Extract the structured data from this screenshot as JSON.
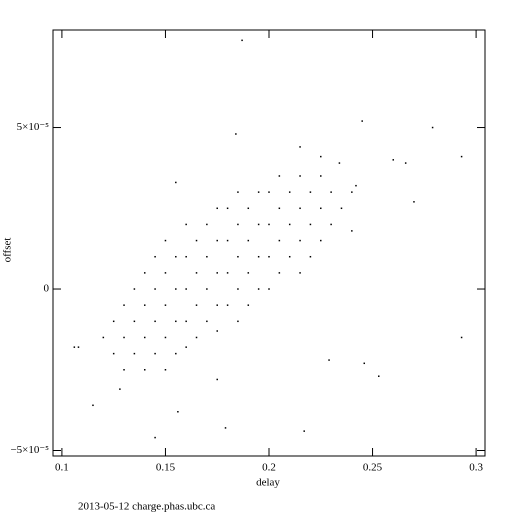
{
  "chart_data": {
    "type": "scatter",
    "x_label": "delay",
    "y_label": "offset",
    "footer": "2013-05-12 charge.phas.ubc.ca",
    "color": "#000000",
    "xlim": [
      0.0957,
      0.3043
    ],
    "ylim": [
      -5.17e-05,
      8.02e-05
    ],
    "xticks": [
      0.1,
      0.15,
      0.2,
      0.25,
      0.3
    ],
    "yticks": [
      {
        "value": -5e-05,
        "label": "−5×10⁻⁵"
      },
      0,
      {
        "value": 5e-05,
        "label": "5×10⁻⁵"
      }
    ],
    "x": [
      0.12,
      0.125,
      0.125,
      0.13,
      0.13,
      0.13,
      0.135,
      0.135,
      0.135,
      0.14,
      0.14,
      0.14,
      0.14,
      0.145,
      0.145,
      0.145,
      0.145,
      0.15,
      0.15,
      0.15,
      0.15,
      0.15,
      0.155,
      0.155,
      0.155,
      0.155,
      0.16,
      0.16,
      0.16,
      0.16,
      0.16,
      0.165,
      0.165,
      0.165,
      0.165,
      0.17,
      0.17,
      0.17,
      0.17,
      0.175,
      0.175,
      0.175,
      0.175,
      0.175,
      0.18,
      0.18,
      0.18,
      0.18,
      0.185,
      0.185,
      0.185,
      0.185,
      0.185,
      0.19,
      0.19,
      0.19,
      0.19,
      0.195,
      0.195,
      0.195,
      0.195,
      0.2,
      0.2,
      0.2,
      0.2,
      0.205,
      0.205,
      0.205,
      0.205,
      0.21,
      0.21,
      0.21,
      0.215,
      0.215,
      0.215,
      0.215,
      0.22,
      0.22,
      0.22,
      0.225,
      0.225,
      0.225,
      0.23,
      0.23,
      0.235,
      0.24,
      0.24,
      0.108,
      0.115,
      0.187,
      0.184,
      0.155,
      0.215,
      0.245,
      0.266,
      0.279,
      0.293,
      0.293,
      0.27,
      0.145,
      0.179,
      0.217,
      0.246,
      0.253,
      0.229,
      0.175,
      0.156,
      0.26,
      0.242,
      0.234,
      0.225,
      0.128,
      0.106
    ],
    "values": [
      -1.5e-05,
      -1e-05,
      -2e-05,
      -5e-06,
      -1.5e-05,
      -2.5e-05,
      0,
      -1e-05,
      -2e-05,
      5e-06,
      -5e-06,
      -1.5e-05,
      -2.5e-05,
      1e-05,
      0,
      -1e-05,
      -2e-05,
      1.5e-05,
      5e-06,
      -5e-06,
      -1.5e-05,
      -2.5e-05,
      1e-05,
      0,
      -1e-05,
      -2e-05,
      2e-05,
      1e-05,
      0,
      -1e-05,
      -1.8e-05,
      1.5e-05,
      5e-06,
      -5e-06,
      -1.5e-05,
      2e-05,
      1e-05,
      0,
      -1e-05,
      2.5e-05,
      1.5e-05,
      5e-06,
      -5e-06,
      -1.3e-05,
      2.5e-05,
      1.5e-05,
      5e-06,
      -5e-06,
      3e-05,
      2e-05,
      1e-05,
      0,
      -1e-05,
      2.5e-05,
      1.5e-05,
      5e-06,
      -5e-06,
      3e-05,
      2e-05,
      1e-05,
      0,
      3e-05,
      2e-05,
      1e-05,
      0,
      3.5e-05,
      2.5e-05,
      1.5e-05,
      5e-06,
      3e-05,
      2e-05,
      1e-05,
      3.5e-05,
      2.5e-05,
      1.5e-05,
      5e-06,
      3e-05,
      2e-05,
      1e-05,
      3.5e-05,
      2.5e-05,
      1.5e-05,
      3e-05,
      2e-05,
      2.5e-05,
      3e-05,
      1.8e-05,
      -1.8e-05,
      -3.6e-05,
      7.7e-05,
      4.8e-05,
      3.3e-05,
      4.4e-05,
      5.2e-05,
      3.9e-05,
      5e-05,
      4.1e-05,
      -1.5e-05,
      2.7e-05,
      -4.6e-05,
      -4.3e-05,
      -4.4e-05,
      -2.3e-05,
      -2.7e-05,
      -2.2e-05,
      -2.8e-05,
      -3.8e-05,
      4e-05,
      3.2e-05,
      3.9e-05,
      4.1e-05,
      -3.1e-05,
      -1.8e-05
    ]
  }
}
